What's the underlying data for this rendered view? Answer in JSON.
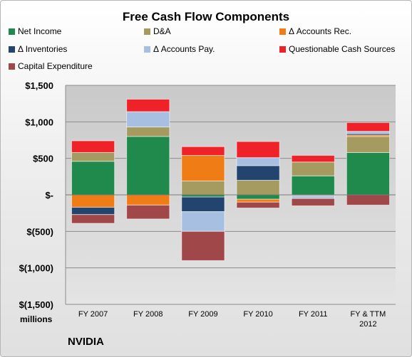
{
  "chart_data": {
    "type": "bar",
    "stacked": true,
    "title": "Free Cash Flow Components",
    "categories": [
      "FY 2007",
      "FY 2008",
      "FY 2009",
      "FY 2010",
      "FY 2011",
      "FY & TTM 2012"
    ],
    "series": [
      {
        "name": "Net Income",
        "color": "#1f8a4c",
        "values": [
          460,
          800,
          -30,
          -60,
          260,
          580
        ]
      },
      {
        "name": "D&A",
        "color": "#a59a60",
        "values": [
          120,
          130,
          190,
          200,
          190,
          220
        ]
      },
      {
        "name": "Δ Accounts Rec.",
        "color": "#f07c16",
        "values": [
          -170,
          -140,
          350,
          -40,
          -10,
          20
        ]
      },
      {
        "name": "Δ Inventories",
        "color": "#22446e",
        "values": [
          -100,
          0,
          -200,
          200,
          -10,
          20
        ]
      },
      {
        "name": "Δ Accounts Pay.",
        "color": "#a7c0e2",
        "values": [
          0,
          210,
          -270,
          110,
          -30,
          30
        ]
      },
      {
        "name": "Questionable Cash Sources",
        "color": "#ee2228",
        "values": [
          160,
          170,
          120,
          220,
          90,
          120
        ]
      },
      {
        "name": "Capital Expenditure",
        "color": "#a0474a",
        "values": [
          -120,
          -190,
          -400,
          -80,
          -100,
          -140
        ]
      }
    ],
    "ylim": [
      -1500,
      1500
    ],
    "yticks": [
      1500,
      1000,
      500,
      0,
      -500,
      -1000,
      -1500
    ],
    "ytick_labels": [
      "$1,500",
      "$1,000",
      "$500",
      "$-",
      "$(500)",
      "$(1,000)",
      "$(1,500)"
    ],
    "ylabel": "",
    "xlabel": "",
    "grid": true,
    "legend_position": "top"
  },
  "footer": {
    "units": "millions",
    "company": "NVIDIA"
  }
}
